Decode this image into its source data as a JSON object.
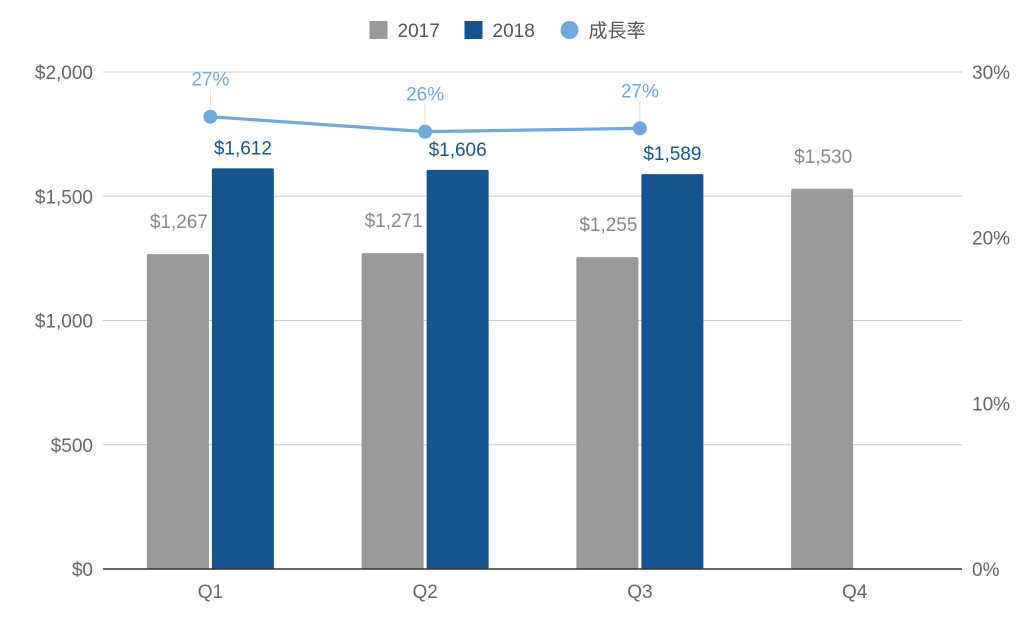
{
  "chart_data": {
    "type": "bar",
    "categories": [
      "Q1",
      "Q2",
      "Q3",
      "Q4"
    ],
    "series": [
      {
        "name": "2017",
        "kind": "bar",
        "axis": "left",
        "color": "#999999",
        "label_color": "#888888",
        "values": [
          1267,
          1271,
          1255,
          1530
        ],
        "labels": [
          "$1,267",
          "$1,271",
          "$1,255",
          "$1,530"
        ]
      },
      {
        "name": "2018",
        "kind": "bar",
        "axis": "left",
        "color": "#155490",
        "label_color": "#155490",
        "values": [
          1612,
          1606,
          1589,
          null
        ],
        "labels": [
          "$1,612",
          "$1,606",
          "$1,589",
          ""
        ]
      },
      {
        "name": "成長率",
        "kind": "line",
        "axis": "right",
        "color": "#6FA8DC",
        "label_color": "#6FA8DC",
        "values": [
          27.3,
          26.4,
          26.6,
          null
        ],
        "labels": [
          "27%",
          "26%",
          "27%",
          ""
        ]
      }
    ],
    "y_left": {
      "min": 0,
      "max": 2000,
      "ticks": [
        0,
        500,
        1000,
        1500,
        2000
      ],
      "tick_labels": [
        "$0",
        "$500",
        "$1,000",
        "$1,500",
        "$2,000"
      ]
    },
    "y_right": {
      "min": 0,
      "max": 30,
      "ticks": [
        0,
        10,
        20,
        30
      ],
      "tick_labels": [
        "0%",
        "10%",
        "20%",
        "30%"
      ]
    },
    "grid": true,
    "legend_position": "top-center",
    "title": "",
    "xlabel": "",
    "ylabel": ""
  }
}
